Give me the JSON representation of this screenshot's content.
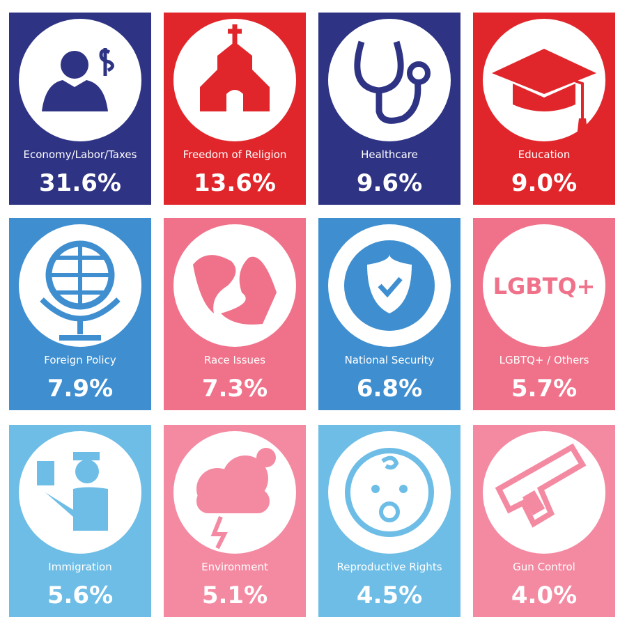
{
  "tiles": [
    {
      "label": "Economy/Labor/Taxes",
      "value": "31.6%",
      "color": "#2e3384"
    },
    {
      "label": "Freedom of Religion",
      "value": "13.6%",
      "color": "#e0262b"
    },
    {
      "label": "Healthcare",
      "value": "9.6%",
      "color": "#2e3384"
    },
    {
      "label": "Education",
      "value": "9.0%",
      "color": "#e0262b"
    },
    {
      "label": "Foreign Policy",
      "value": "7.9%",
      "color": "#3f8fd0"
    },
    {
      "label": "Race Issues",
      "value": "7.3%",
      "color": "#f0728a"
    },
    {
      "label": "National Security",
      "value": "6.8%",
      "color": "#3f8fd0"
    },
    {
      "label": "LGBTQ+ / Others",
      "value": "5.7%",
      "color": "#f0728a",
      "icon_text": "LGBTQ+"
    },
    {
      "label": "Immigration",
      "value": "5.6%",
      "color": "#6dbde6"
    },
    {
      "label": "Environment",
      "value": "5.1%",
      "color": "#f48aa2"
    },
    {
      "label": "Reproductive Rights",
      "value": "4.5%",
      "color": "#6dbde6"
    },
    {
      "label": "Gun Control",
      "value": "4.0%",
      "color": "#f48aa2"
    }
  ]
}
